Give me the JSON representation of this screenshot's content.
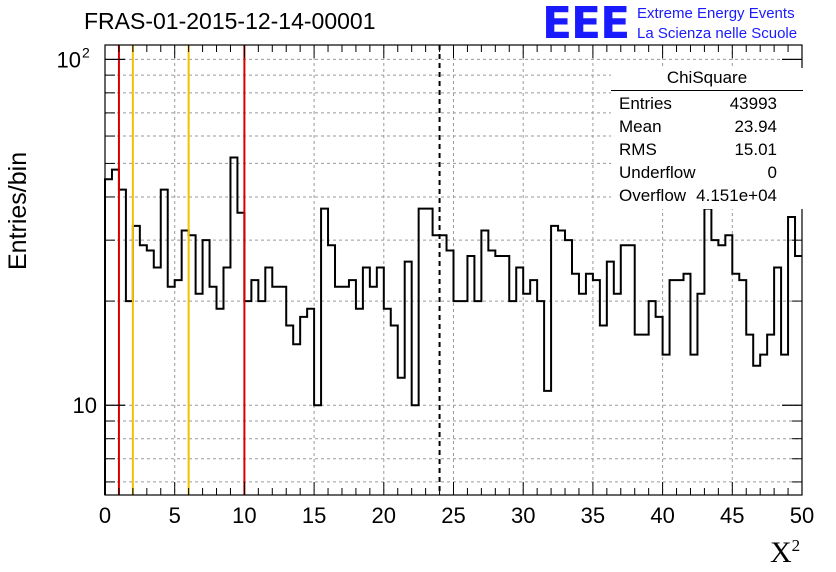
{
  "header": {
    "title": "FRAS-01-2015-12-14-00001",
    "logo_text": "EEE",
    "logo_line1": "Extreme Energy Events",
    "logo_line2": "La Scienza nelle Scuole"
  },
  "stats_box": {
    "name": "ChiSquare",
    "rows": [
      {
        "label": "Entries",
        "value": "43993"
      },
      {
        "label": "Mean",
        "value": "23.94"
      },
      {
        "label": "RMS",
        "value": "15.01"
      },
      {
        "label": "Underflow",
        "value": "0"
      },
      {
        "label": "Overflow",
        "value": "4.151e+04"
      }
    ]
  },
  "chart_data": {
    "type": "histogram",
    "title": "FRAS-01-2015-12-14-00001",
    "xlabel": "X",
    "xlabel_sup": "2",
    "ylabel": "Entries/bin",
    "x_range": [
      0,
      50
    ],
    "y_scale": "log",
    "y_range": [
      5.5,
      110
    ],
    "bin_width": 0.5,
    "x_ticks": [
      "0",
      "5",
      "10",
      "15",
      "20",
      "25",
      "30",
      "35",
      "40",
      "45",
      "50"
    ],
    "y_tick_labels": [
      {
        "value": 10,
        "label": "10"
      },
      {
        "value": 100,
        "label": "10",
        "sup": "2"
      }
    ],
    "grid": true,
    "values": [
      45,
      48,
      42,
      20,
      33,
      29,
      28,
      25,
      42,
      22,
      23,
      32,
      31,
      21,
      30,
      22,
      19,
      25,
      52,
      36,
      20,
      23,
      20,
      25,
      22,
      22,
      17,
      15,
      18,
      19,
      10,
      37,
      29,
      22,
      22,
      23,
      19,
      25,
      22,
      25,
      19,
      17,
      12,
      26,
      10,
      37,
      37,
      31,
      31,
      28,
      20,
      20,
      27,
      20,
      32,
      28,
      27,
      27,
      20,
      25,
      21,
      23,
      20,
      11,
      33,
      32,
      30,
      24,
      21,
      24,
      23,
      17,
      26,
      21,
      29,
      29,
      16,
      16,
      20,
      18,
      14,
      23,
      23,
      24,
      14,
      21,
      37,
      30,
      29,
      31,
      24,
      23,
      16,
      13,
      14,
      16,
      25,
      14,
      35,
      27
    ],
    "vertical_lines": [
      {
        "x": 1,
        "color": "#d60000",
        "style": "solid"
      },
      {
        "x": 2,
        "color": "#f2c200",
        "style": "solid"
      },
      {
        "x": 6,
        "color": "#f2c200",
        "style": "solid"
      },
      {
        "x": 10,
        "color": "#d60000",
        "style": "solid"
      },
      {
        "x": 24,
        "color": "#000000",
        "style": "dashed"
      }
    ]
  }
}
